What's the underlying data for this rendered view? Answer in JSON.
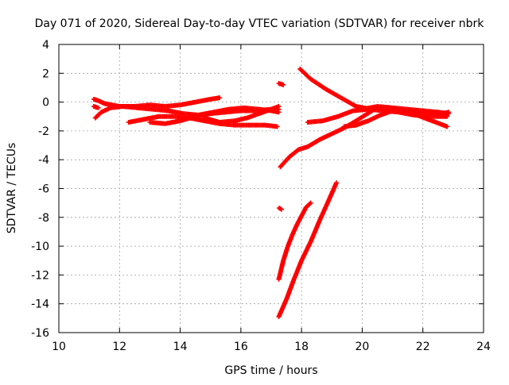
{
  "chart_data": {
    "type": "scatter",
    "title": "Day 071 of 2020, Sidereal Day-to-day VTEC variation (SDTVAR) for receiver nbrk",
    "xlabel": "GPS time / hours",
    "ylabel": "SDTVAR / TECUs",
    "xlim": [
      10,
      24
    ],
    "ylim": [
      -16,
      4
    ],
    "x_ticks": [
      10,
      12,
      14,
      16,
      18,
      20,
      22,
      24
    ],
    "y_ticks": [
      4,
      2,
      0,
      -2,
      -4,
      -6,
      -8,
      -10,
      -12,
      -14,
      -16
    ],
    "x_tick_labels": [
      "10",
      "12",
      "14",
      "16",
      "18",
      "20",
      "22",
      "24"
    ],
    "y_tick_labels": [
      "4",
      "2",
      "0",
      "-2",
      "-4",
      "-6",
      "-8",
      "-10",
      "-12",
      "-14",
      "-16"
    ],
    "grid": true,
    "marker": "plus",
    "color": "#ff0000",
    "series": [
      {
        "x": [
          11.15,
          11.3,
          11.5,
          12.0,
          12.5,
          13.0,
          13.5,
          14.0,
          14.5,
          15.0,
          15.3
        ],
        "y": [
          0.2,
          0.1,
          -0.1,
          -0.3,
          -0.3,
          -0.2,
          -0.3,
          -0.2,
          0.0,
          0.2,
          0.3
        ]
      },
      {
        "x": [
          11.2,
          11.4,
          11.7,
          12.1,
          12.6,
          13.1,
          13.6,
          14.1,
          14.6,
          15.1,
          15.6,
          16.1,
          16.6,
          17.0,
          17.25
        ],
        "y": [
          -1.1,
          -0.7,
          -0.4,
          -0.3,
          -0.4,
          -0.5,
          -0.6,
          -0.8,
          -0.9,
          -0.7,
          -0.5,
          -0.4,
          -0.5,
          -0.6,
          -0.7
        ]
      },
      {
        "x": [
          12.3,
          12.8,
          13.3,
          13.8,
          14.3,
          14.8,
          15.3,
          15.8,
          16.3,
          16.8,
          17.2
        ],
        "y": [
          -1.4,
          -1.2,
          -1.0,
          -1.0,
          -1.1,
          -1.3,
          -1.5,
          -1.6,
          -1.6,
          -1.6,
          -1.7
        ]
      },
      {
        "x": [
          13.0,
          13.5,
          14.0,
          14.5,
          15.0,
          15.5,
          16.0,
          16.5,
          17.0,
          17.25
        ],
        "y": [
          -1.4,
          -1.5,
          -1.3,
          -1.0,
          -0.8,
          -0.7,
          -0.6,
          -0.6,
          -0.5,
          -0.5
        ]
      },
      {
        "x": [
          14.8,
          15.3,
          15.8,
          16.2,
          16.6,
          17.0,
          17.25
        ],
        "y": [
          -1.1,
          -1.4,
          -1.3,
          -1.1,
          -0.8,
          -0.5,
          -0.3
        ]
      },
      {
        "x": [
          11.15,
          11.3
        ],
        "y": [
          -0.3,
          -0.4
        ]
      },
      {
        "x": [
          17.25,
          17.4
        ],
        "y": [
          1.3,
          1.2
        ]
      },
      {
        "x": [
          17.3
        ],
        "y": [
          -7.4
        ]
      },
      {
        "x": [
          17.95,
          18.3,
          18.8,
          19.3,
          19.8,
          20.3,
          20.8,
          21.3,
          21.8,
          22.3,
          22.8
        ],
        "y": [
          2.3,
          1.6,
          0.9,
          0.3,
          -0.3,
          -0.5,
          -0.4,
          -0.6,
          -0.9,
          -1.3,
          -1.7
        ]
      },
      {
        "x": [
          18.2,
          18.7,
          19.2,
          19.7,
          20.2,
          20.7,
          21.2,
          21.7,
          22.2,
          22.8
        ],
        "y": [
          -1.4,
          -1.3,
          -1.0,
          -0.6,
          -0.5,
          -0.6,
          -0.7,
          -0.9,
          -1.0,
          -1.0
        ]
      },
      {
        "x": [
          19.4,
          19.8,
          20.2,
          20.6,
          21.0,
          21.4,
          21.8,
          22.2,
          22.6,
          22.85
        ],
        "y": [
          -1.7,
          -1.6,
          -1.3,
          -0.9,
          -0.6,
          -0.6,
          -0.7,
          -0.8,
          -0.8,
          -0.7
        ]
      },
      {
        "x": [
          20.0,
          20.5,
          21.0,
          21.5,
          22.0,
          22.5,
          22.85
        ],
        "y": [
          -0.5,
          -0.3,
          -0.4,
          -0.5,
          -0.6,
          -0.7,
          -0.8
        ]
      },
      {
        "x": [
          17.3,
          17.6,
          17.9,
          18.2,
          18.6,
          19.0,
          19.4,
          19.8,
          20.1,
          20.4
        ],
        "y": [
          -4.5,
          -3.8,
          -3.3,
          -3.1,
          -2.6,
          -2.2,
          -1.8,
          -1.3,
          -0.9,
          -0.5
        ]
      },
      {
        "x": [
          17.25,
          17.4,
          17.55,
          17.7,
          17.85,
          18.0,
          18.15,
          18.3
        ],
        "y": [
          -12.3,
          -11.0,
          -10.0,
          -9.2,
          -8.5,
          -7.9,
          -7.3,
          -7.0
        ]
      },
      {
        "x": [
          17.25,
          17.5,
          17.75,
          18.0,
          18.3,
          18.6,
          18.9,
          19.15
        ],
        "y": [
          -14.9,
          -13.7,
          -12.3,
          -11.0,
          -9.7,
          -8.2,
          -6.8,
          -5.6
        ]
      }
    ]
  }
}
